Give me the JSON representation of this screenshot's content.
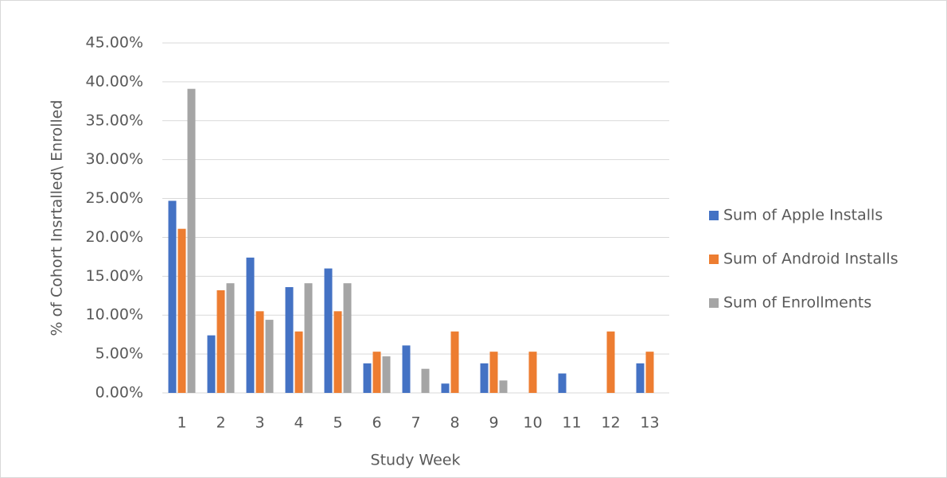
{
  "chart_data": {
    "type": "bar",
    "x_label": "Study Week",
    "y_label": "% of Cohort Insrtalled\\ Enrolled",
    "categories": [
      "1",
      "2",
      "3",
      "4",
      "5",
      "6",
      "7",
      "8",
      "9",
      "10",
      "11",
      "12",
      "13"
    ],
    "series": [
      {
        "name": "Sum of Apple Installs",
        "color": "#4472c4",
        "values": [
          24.7,
          7.4,
          17.4,
          13.6,
          16.0,
          3.8,
          6.1,
          1.2,
          3.8,
          0,
          2.5,
          0,
          3.8
        ]
      },
      {
        "name": "Sum of Android Installs",
        "color": "#ed7d31",
        "values": [
          21.1,
          13.2,
          10.5,
          7.9,
          10.5,
          5.3,
          0,
          7.9,
          5.3,
          5.3,
          0,
          7.9,
          5.3
        ]
      },
      {
        "name": "Sum of Enrollments",
        "color": "#a5a5a5",
        "values": [
          39.1,
          14.1,
          9.4,
          14.1,
          14.1,
          4.7,
          3.1,
          0,
          1.6,
          0,
          0,
          0,
          0
        ]
      }
    ],
    "ylim": [
      0,
      45
    ],
    "yticks": [
      {
        "value": 0,
        "label": "0.00%"
      },
      {
        "value": 5,
        "label": "5.00%"
      },
      {
        "value": 10,
        "label": "10.00%"
      },
      {
        "value": 15,
        "label": "15.00%"
      },
      {
        "value": 20,
        "label": "20.00%"
      },
      {
        "value": 25,
        "label": "25.00%"
      },
      {
        "value": 30,
        "label": "30.00%"
      },
      {
        "value": 35,
        "label": "35.00%"
      },
      {
        "value": 40,
        "label": "40.00%"
      },
      {
        "value": 45,
        "label": "45.00%"
      }
    ],
    "grid": true,
    "legend": "right"
  }
}
